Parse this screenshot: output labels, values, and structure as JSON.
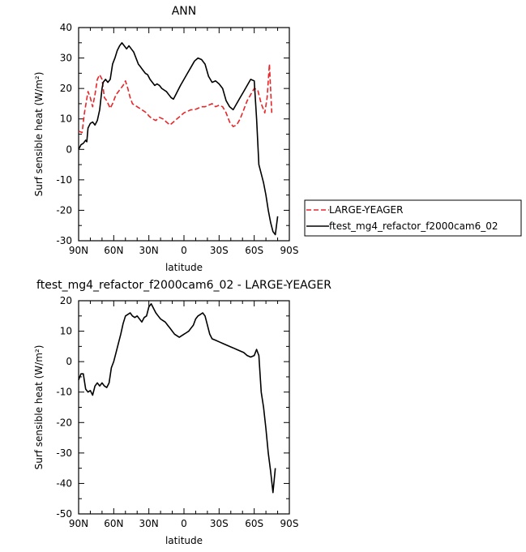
{
  "chart_data": [
    {
      "type": "line",
      "title": "ANN",
      "xlabel": "latitude",
      "ylabel": "Surf sensible heat (W/m²)",
      "xlim": [
        90,
        -90
      ],
      "ylim": [
        -30,
        40
      ],
      "x_ticks": [
        {
          "value": 90,
          "label": "90N"
        },
        {
          "value": 60,
          "label": "60N"
        },
        {
          "value": 30,
          "label": "30N"
        },
        {
          "value": 0,
          "label": "0"
        },
        {
          "value": -30,
          "label": "30S"
        },
        {
          "value": -60,
          "label": "60S"
        },
        {
          "value": -90,
          "label": "90S"
        }
      ],
      "y_ticks": [
        -30,
        -20,
        -10,
        0,
        10,
        20,
        30,
        40
      ],
      "legend": {
        "placement": "right",
        "entries": [
          {
            "label": "LARGE-YEAGER",
            "style": "dashed",
            "color": "#e8262a"
          },
          {
            "label": "ftest_mg4_refactor_f2000cam6_02",
            "style": "solid",
            "color": "#000000"
          }
        ]
      },
      "series": [
        {
          "name": "LARGE-YEAGER",
          "color": "#e8262a",
          "style": "dashed",
          "points": [
            [
              90,
              6
            ],
            [
              87,
              5.5
            ],
            [
              85,
              12
            ],
            [
              82,
              19
            ],
            [
              80,
              17
            ],
            [
              78,
              14
            ],
            [
              76,
              18
            ],
            [
              74,
              23
            ],
            [
              72,
              24.5
            ],
            [
              70,
              23
            ],
            [
              68,
              17
            ],
            [
              66,
              16
            ],
            [
              63,
              13.5
            ],
            [
              61,
              15
            ],
            [
              58,
              18
            ],
            [
              55,
              19.5
            ],
            [
              52,
              21
            ],
            [
              50,
              22.5
            ],
            [
              48,
              20
            ],
            [
              46,
              17
            ],
            [
              44,
              15
            ],
            [
              40,
              14
            ],
            [
              36,
              13
            ],
            [
              32,
              12
            ],
            [
              30,
              11
            ],
            [
              27,
              10
            ],
            [
              24,
              9.5
            ],
            [
              21,
              10.5
            ],
            [
              18,
              10
            ],
            [
              15,
              9
            ],
            [
              12,
              8
            ],
            [
              9,
              9
            ],
            [
              6,
              10
            ],
            [
              3,
              11
            ],
            [
              0,
              12
            ],
            [
              -3,
              12.5
            ],
            [
              -6,
              13
            ],
            [
              -9,
              13
            ],
            [
              -12,
              13.5
            ],
            [
              -15,
              14
            ],
            [
              -18,
              14
            ],
            [
              -21,
              14.5
            ],
            [
              -24,
              15
            ],
            [
              -27,
              14
            ],
            [
              -30,
              14.5
            ],
            [
              -33,
              14
            ],
            [
              -36,
              12
            ],
            [
              -39,
              9
            ],
            [
              -42,
              7.5
            ],
            [
              -45,
              8
            ],
            [
              -48,
              10
            ],
            [
              -51,
              13
            ],
            [
              -54,
              16
            ],
            [
              -57,
              18
            ],
            [
              -60,
              20
            ],
            [
              -63,
              19.5
            ],
            [
              -66,
              15
            ],
            [
              -69,
              12
            ],
            [
              -71,
              17
            ],
            [
              -73,
              28
            ],
            [
              -75,
              12
            ]
          ]
        },
        {
          "name": "ftest_mg4_refactor_f2000cam6_02",
          "color": "#000000",
          "style": "solid",
          "points": [
            [
              90,
              0
            ],
            [
              88,
              1.5
            ],
            [
              86,
              2
            ],
            [
              84,
              3
            ],
            [
              83,
              2.5
            ],
            [
              82,
              7
            ],
            [
              80,
              8.5
            ],
            [
              78,
              9
            ],
            [
              76,
              8
            ],
            [
              74,
              9.5
            ],
            [
              72,
              13
            ],
            [
              70,
              20
            ],
            [
              69,
              22
            ],
            [
              67,
              23
            ],
            [
              65,
              22
            ],
            [
              63,
              23
            ],
            [
              61,
              28
            ],
            [
              59,
              30
            ],
            [
              57,
              32.5
            ],
            [
              55,
              34
            ],
            [
              53,
              35
            ],
            [
              51,
              34
            ],
            [
              49,
              33
            ],
            [
              47,
              34
            ],
            [
              45,
              33
            ],
            [
              43,
              32
            ],
            [
              41,
              30
            ],
            [
              39,
              28
            ],
            [
              37,
              27
            ],
            [
              35,
              26
            ],
            [
              33,
              25
            ],
            [
              31,
              24.5
            ],
            [
              29,
              23
            ],
            [
              27,
              22
            ],
            [
              25,
              21
            ],
            [
              23,
              21.5
            ],
            [
              21,
              21
            ],
            [
              19,
              20
            ],
            [
              17,
              19.5
            ],
            [
              15,
              19
            ],
            [
              13,
              18
            ],
            [
              11,
              17
            ],
            [
              9,
              16.5
            ],
            [
              7,
              18
            ],
            [
              5,
              19.5
            ],
            [
              3,
              21
            ],
            [
              0,
              23
            ],
            [
              -3,
              25
            ],
            [
              -6,
              27
            ],
            [
              -9,
              29
            ],
            [
              -12,
              30
            ],
            [
              -15,
              29.5
            ],
            [
              -18,
              28
            ],
            [
              -21,
              24
            ],
            [
              -24,
              22
            ],
            [
              -27,
              22.5
            ],
            [
              -30,
              21.5
            ],
            [
              -33,
              20
            ],
            [
              -36,
              16
            ],
            [
              -39,
              14
            ],
            [
              -42,
              13
            ],
            [
              -45,
              15
            ],
            [
              -48,
              17
            ],
            [
              -51,
              19
            ],
            [
              -54,
              21
            ],
            [
              -57,
              23
            ],
            [
              -60,
              22.5
            ],
            [
              -62,
              10
            ],
            [
              -64,
              -5
            ],
            [
              -66,
              -8
            ],
            [
              -68,
              -11
            ],
            [
              -70,
              -15
            ],
            [
              -72,
              -20
            ],
            [
              -74,
              -24
            ],
            [
              -76,
              -27
            ],
            [
              -78,
              -28
            ],
            [
              -80,
              -22
            ]
          ]
        }
      ]
    },
    {
      "type": "line",
      "title": "ftest_mg4_refactor_f2000cam6_02 - LARGE-YEAGER",
      "xlabel": "latitude",
      "ylabel": "Surf sensible heat (W/m²)",
      "xlim": [
        90,
        -90
      ],
      "ylim": [
        -50,
        20
      ],
      "x_ticks": [
        {
          "value": 90,
          "label": "90N"
        },
        {
          "value": 60,
          "label": "60N"
        },
        {
          "value": 30,
          "label": "30N"
        },
        {
          "value": 0,
          "label": "0"
        },
        {
          "value": -30,
          "label": "30S"
        },
        {
          "value": -60,
          "label": "60S"
        },
        {
          "value": -90,
          "label": "90S"
        }
      ],
      "y_ticks": [
        -50,
        -40,
        -30,
        -20,
        -10,
        0,
        10,
        20
      ],
      "series": [
        {
          "color": "#000000",
          "style": "solid",
          "points": [
            [
              90,
              -6
            ],
            [
              88,
              -4
            ],
            [
              86,
              -4
            ],
            [
              84,
              -9
            ],
            [
              82,
              -10
            ],
            [
              80,
              -9.5
            ],
            [
              78,
              -11
            ],
            [
              76,
              -8
            ],
            [
              74,
              -7
            ],
            [
              72,
              -8
            ],
            [
              70,
              -7
            ],
            [
              68,
              -8
            ],
            [
              66,
              -8.5
            ],
            [
              64,
              -7
            ],
            [
              62,
              -2
            ],
            [
              60,
              0
            ],
            [
              58,
              3
            ],
            [
              56,
              6
            ],
            [
              54,
              9
            ],
            [
              52,
              12.5
            ],
            [
              50,
              15
            ],
            [
              48,
              15.5
            ],
            [
              46,
              16
            ],
            [
              44,
              15
            ],
            [
              42,
              14.5
            ],
            [
              40,
              15
            ],
            [
              38,
              14
            ],
            [
              36,
              13
            ],
            [
              34,
              14.5
            ],
            [
              32,
              15
            ],
            [
              30,
              18
            ],
            [
              28,
              19
            ],
            [
              26,
              17.5
            ],
            [
              24,
              16
            ],
            [
              22,
              15
            ],
            [
              20,
              14
            ],
            [
              18,
              13.5
            ],
            [
              16,
              13
            ],
            [
              14,
              12
            ],
            [
              12,
              11
            ],
            [
              10,
              10
            ],
            [
              8,
              9
            ],
            [
              6,
              8.5
            ],
            [
              4,
              8
            ],
            [
              2,
              8.5
            ],
            [
              0,
              9
            ],
            [
              -2,
              9.5
            ],
            [
              -4,
              10
            ],
            [
              -6,
              11
            ],
            [
              -8,
              12
            ],
            [
              -10,
              14
            ],
            [
              -12,
              15
            ],
            [
              -14,
              15.5
            ],
            [
              -16,
              16
            ],
            [
              -18,
              15
            ],
            [
              -20,
              12
            ],
            [
              -22,
              9
            ],
            [
              -24,
              7.5
            ],
            [
              -27,
              7
            ],
            [
              -30,
              6.5
            ],
            [
              -33,
              6
            ],
            [
              -36,
              5.5
            ],
            [
              -39,
              5
            ],
            [
              -42,
              4.5
            ],
            [
              -45,
              4
            ],
            [
              -48,
              3.5
            ],
            [
              -51,
              3
            ],
            [
              -54,
              2
            ],
            [
              -57,
              1.5
            ],
            [
              -60,
              2
            ],
            [
              -62,
              4
            ],
            [
              -64,
              2
            ],
            [
              -66,
              -10
            ],
            [
              -68,
              -15
            ],
            [
              -70,
              -22
            ],
            [
              -72,
              -30
            ],
            [
              -74,
              -36
            ],
            [
              -76,
              -43
            ],
            [
              -78,
              -35
            ]
          ]
        }
      ]
    }
  ]
}
